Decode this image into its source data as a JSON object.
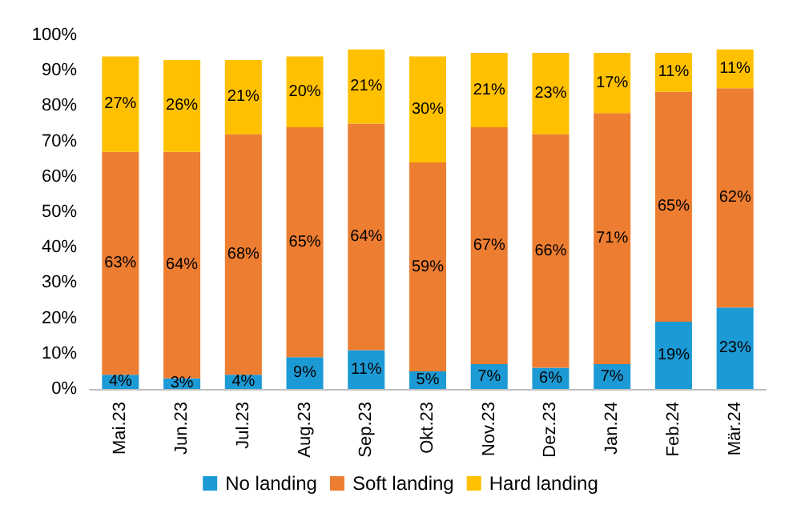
{
  "chart_data": {
    "type": "bar",
    "stacked": true,
    "categories": [
      "Mai.23",
      "Jun.23",
      "Jul.23",
      "Aug.23",
      "Sep.23",
      "Okt.23",
      "Nov.23",
      "Dez.23",
      "Jan.24",
      "Feb.24",
      "Mär.24"
    ],
    "series": [
      {
        "name": "No landing",
        "color": "#1c9ad6",
        "values": [
          4,
          3,
          4,
          9,
          11,
          5,
          7,
          6,
          7,
          19,
          23
        ],
        "value_labels": [
          "4%",
          "3%",
          "4%",
          "9%",
          "11%",
          "5%",
          "7%",
          "6%",
          "7%",
          "19%",
          "23%"
        ]
      },
      {
        "name": "Soft landing",
        "color": "#ed7d31",
        "values": [
          63,
          64,
          68,
          65,
          64,
          59,
          67,
          66,
          71,
          65,
          62
        ],
        "value_labels": [
          "63%",
          "64%",
          "68%",
          "65%",
          "64%",
          "59%",
          "67%",
          "66%",
          "71%",
          "65%",
          "62%"
        ]
      },
      {
        "name": "Hard landing",
        "color": "#ffc000",
        "values": [
          27,
          26,
          21,
          20,
          21,
          30,
          21,
          23,
          17,
          11,
          11
        ],
        "value_labels": [
          "27%",
          "26%",
          "21%",
          "20%",
          "21%",
          "30%",
          "21%",
          "23%",
          "17%",
          "11%",
          "11%"
        ]
      }
    ],
    "ylim": [
      0,
      100
    ],
    "yticks": [
      {
        "value": 0,
        "label": "0%"
      },
      {
        "value": 10,
        "label": "10%"
      },
      {
        "value": 20,
        "label": "20%"
      },
      {
        "value": 30,
        "label": "30%"
      },
      {
        "value": 40,
        "label": "40%"
      },
      {
        "value": 50,
        "label": "50%"
      },
      {
        "value": 60,
        "label": "60%"
      },
      {
        "value": 70,
        "label": "70%"
      },
      {
        "value": 80,
        "label": "80%"
      },
      {
        "value": 90,
        "label": "90%"
      },
      {
        "value": 100,
        "label": "100%"
      }
    ],
    "legend": "bottom"
  }
}
